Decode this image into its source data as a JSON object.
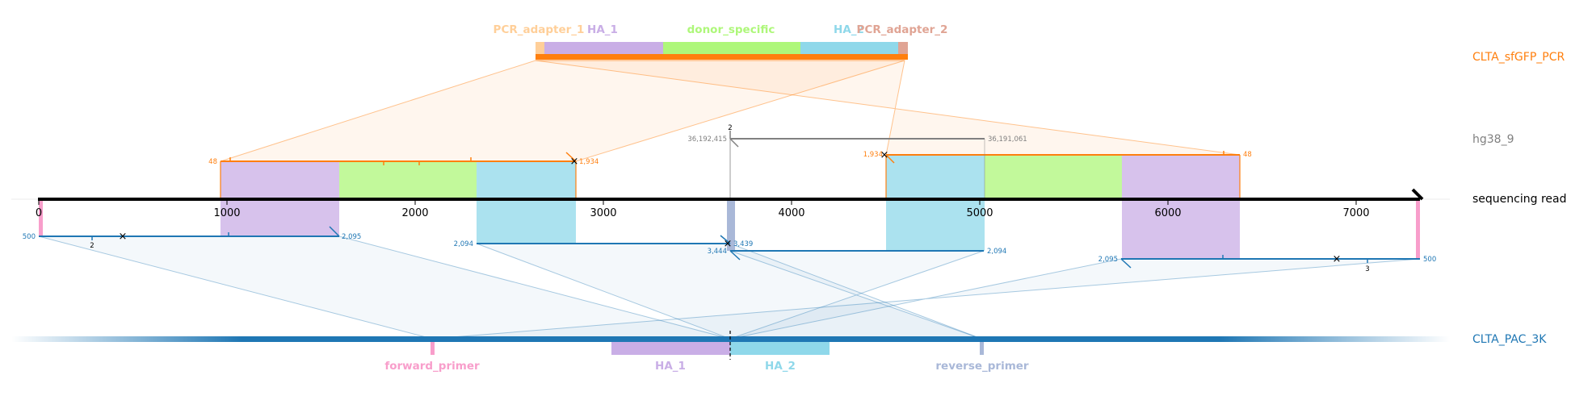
{
  "reads": {
    "pcr": {
      "name": "CLTA_sfGFP_PCR",
      "color": "#ff7f0e"
    },
    "genome": {
      "name": "hg38_9",
      "color": "#808080"
    },
    "sequencing": {
      "name": "sequencing read",
      "color": "#000000"
    },
    "donor": {
      "name": "CLTA_PAC_3K",
      "color": "#1f77b4"
    }
  },
  "axis": {
    "ticks": [
      "0",
      "1000",
      "2000",
      "3000",
      "4000",
      "5000",
      "6000",
      "7000"
    ]
  },
  "pcr_features": {
    "pcr_adapter_1": {
      "label": "PCR_adapter_1",
      "color": "#ffcf99"
    },
    "ha_1": {
      "label": "HA_1",
      "color": "#c9aee6"
    },
    "donor_specific": {
      "label": "donor_specific",
      "color": "#aef77a"
    },
    "ha_2": {
      "label": "HA_2",
      "color": "#8fd8ea"
    },
    "pcr_adapter_2": {
      "label": "PCR_adapter_2",
      "color": "#e0a494"
    }
  },
  "donor_features": {
    "forward_primer": {
      "label": "forward_primer",
      "color": "#f89ecb"
    },
    "ha_1": {
      "label": "HA_1",
      "color": "#c9aee6"
    },
    "ha_2": {
      "label": "HA_2",
      "color": "#8fd8ea"
    },
    "reverse_primer": {
      "label": "reverse_primer",
      "color": "#a9b8d8"
    }
  },
  "annotations": {
    "pcr_left_start": "48",
    "pcr_left_end": "1,934",
    "pcr_right_start": "1,934",
    "pcr_right_end": "48",
    "genome_start": "36,192,415",
    "genome_end": "36,191,061",
    "genome_count": "2",
    "donor_a_start": "500",
    "donor_a_end": "2,095",
    "donor_a_count": "2",
    "donor_b_start": "2,094",
    "donor_b_end": "3,439",
    "donor_c_start": "3,444",
    "donor_c_end": "2,094",
    "donor_d_start": "2,095",
    "donor_d_end": "500",
    "donor_d_count": "3"
  }
}
